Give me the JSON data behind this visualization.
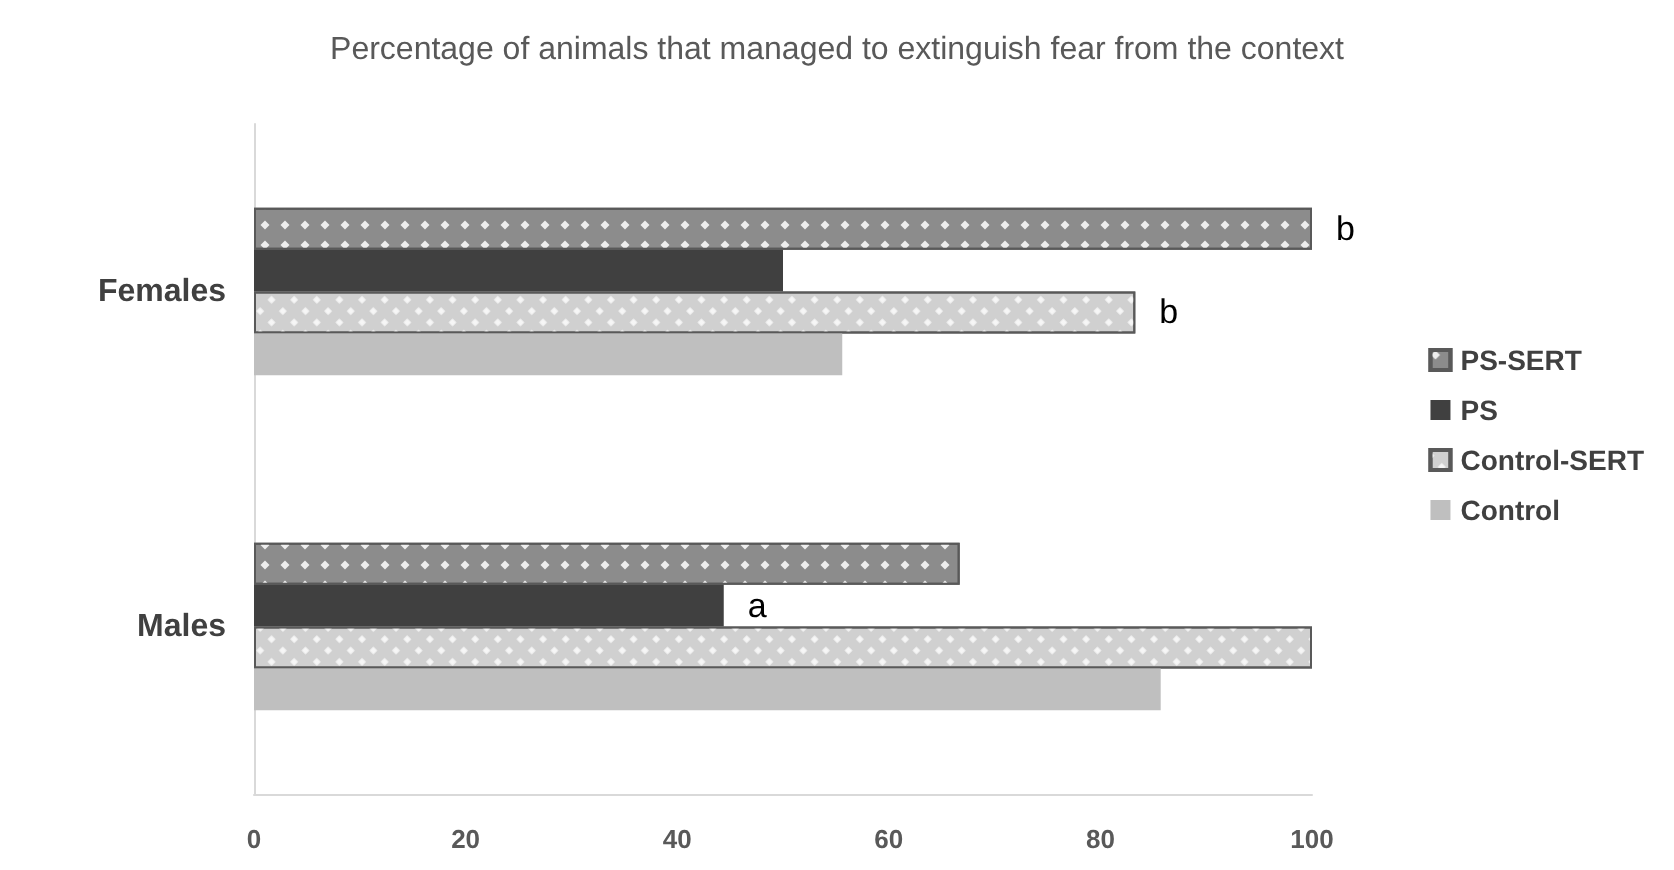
{
  "chart_data": {
    "type": "bar",
    "orientation": "horizontal",
    "title": "Percentage of animals that managed to extinguish fear from the context",
    "categories": [
      "Females",
      "Males"
    ],
    "series": [
      {
        "name": "PS-SERT",
        "color": "#8c8c8c",
        "values": [
          100,
          66.7
        ],
        "value_labels": [
          "b",
          null
        ]
      },
      {
        "name": "PS",
        "color": "#404040",
        "values": [
          50,
          44.4
        ],
        "value_labels": [
          null,
          "a"
        ]
      },
      {
        "name": "Control-SERT",
        "color": "#d0d0d0",
        "values": [
          83.3,
          100
        ],
        "value_labels": [
          "b",
          null
        ]
      },
      {
        "name": "Control",
        "color": "#bfbfbf",
        "values": [
          55.6,
          85.7
        ]
      }
    ],
    "xlim": [
      0,
      100
    ],
    "xticks": [
      0,
      20,
      40,
      60,
      80,
      100
    ],
    "grid": false,
    "legend": "right"
  }
}
